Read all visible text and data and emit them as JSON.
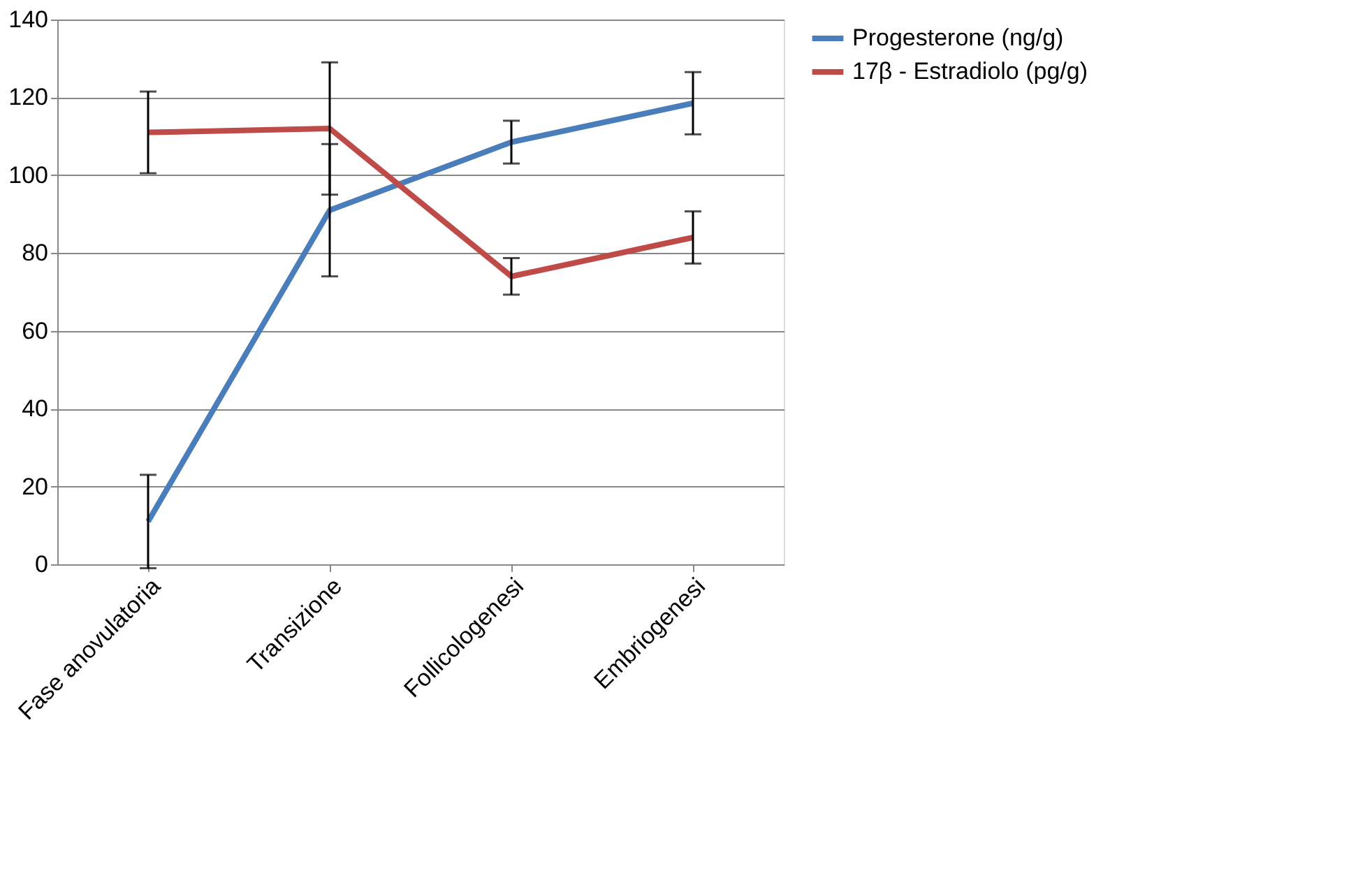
{
  "chart_data": {
    "type": "line",
    "categories": [
      "Fase anovulatoria",
      "Transizione",
      "Follicologenesi",
      "Embriogenesi"
    ],
    "series": [
      {
        "name": "Progesterone (ng/g)",
        "color": "#4a7ebb",
        "values": [
          11,
          91,
          108.5,
          118.5
        ],
        "errors": [
          12,
          17,
          5.5,
          8
        ]
      },
      {
        "name": "17β - Estradiolo (pg/g)",
        "color": "#be4b48",
        "values": [
          111,
          112,
          74,
          84
        ],
        "errors": [
          10.5,
          17,
          4.7,
          6.7
        ]
      }
    ],
    "ylim": [
      0,
      140
    ],
    "yticks": [
      0,
      20,
      40,
      60,
      80,
      100,
      120,
      140
    ],
    "grid": "y",
    "legend": "right",
    "marker": "none",
    "line_style": "solid"
  }
}
